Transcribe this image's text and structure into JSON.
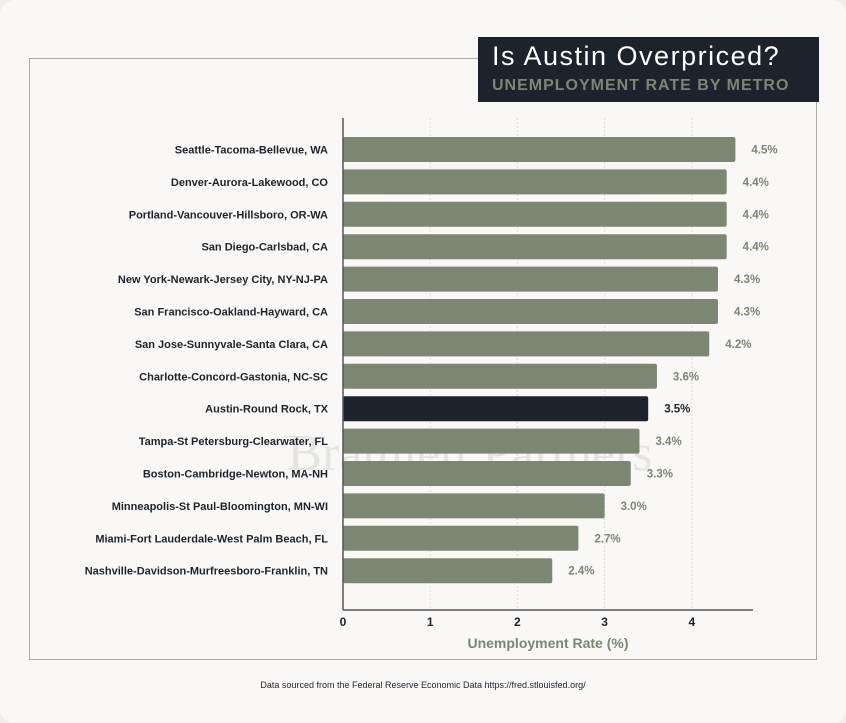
{
  "header": {
    "title": "Is Austin Overpriced?",
    "subtitle": "UNEMPLOYMENT RATE BY METRO"
  },
  "watermark": "Bramlett Partners",
  "source": "Data sourced from the Federal Reserve Economic Data https://fred.stlouisfed.org/",
  "colors": {
    "bar": "#7b8673",
    "highlight": "#1d232d",
    "label": "#7b8673"
  },
  "chart_data": {
    "type": "bar",
    "orientation": "horizontal",
    "categories": [
      "Seattle-Tacoma-Bellevue, WA",
      "Denver-Aurora-Lakewood, CO",
      "Portland-Vancouver-Hillsboro, OR-WA",
      "San Diego-Carlsbad, CA",
      "New York-Newark-Jersey City, NY-NJ-PA",
      "San Francisco-Oakland-Hayward, CA",
      "San Jose-Sunnyvale-Santa Clara, CA",
      "Charlotte-Concord-Gastonia, NC-SC",
      "Austin-Round Rock, TX",
      "Tampa-St Petersburg-Clearwater, FL",
      "Boston-Cambridge-Newton, MA-NH",
      "Minneapolis-St Paul-Bloomington, MN-WI",
      "Miami-Fort Lauderdale-West Palm Beach, FL",
      "Nashville-Davidson-Murfreesboro-Franklin, TN"
    ],
    "values": [
      4.5,
      4.4,
      4.4,
      4.4,
      4.3,
      4.3,
      4.2,
      3.6,
      3.5,
      3.4,
      3.3,
      3.0,
      2.7,
      2.4
    ],
    "data_labels": [
      "4.5%",
      "4.4%",
      "4.4%",
      "4.4%",
      "4.3%",
      "4.3%",
      "4.2%",
      "3.6%",
      "3.5%",
      "3.4%",
      "3.3%",
      "3.0%",
      "2.7%",
      "2.4%"
    ],
    "highlight": "Austin-Round Rock, TX",
    "xlabel": "Unemployment Rate (%)",
    "xlim": [
      0,
      4.7
    ],
    "xticks": [
      "0",
      "1",
      "2",
      "3",
      "4"
    ],
    "grid": true
  }
}
